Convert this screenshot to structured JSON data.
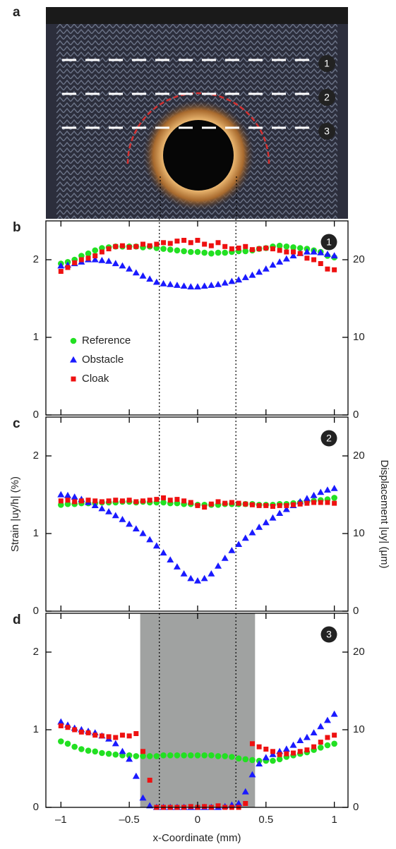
{
  "photo": {
    "label": "a",
    "markers": [
      "1",
      "2",
      "3"
    ]
  },
  "chart_data": [
    {
      "type": "scatter",
      "panel_label": "b",
      "badge": "1",
      "legend": true,
      "xlim": [
        -1.11,
        1.1
      ],
      "xticks": [
        -1,
        -0.5,
        0,
        0.5,
        1
      ],
      "ylim": [
        0,
        2.5
      ],
      "yticks": [
        0,
        1,
        2
      ],
      "y2lim": [
        0,
        25
      ],
      "y2ticks": [
        0,
        10,
        20
      ],
      "vlines": [
        -0.28,
        0.28
      ],
      "x": [
        -1,
        -0.95,
        -0.9,
        -0.85,
        -0.8,
        -0.75,
        -0.7,
        -0.65,
        -0.6,
        -0.55,
        -0.5,
        -0.45,
        -0.4,
        -0.35,
        -0.3,
        -0.25,
        -0.2,
        -0.15,
        -0.1,
        -0.05,
        0,
        0.05,
        0.1,
        0.15,
        0.2,
        0.25,
        0.3,
        0.35,
        0.4,
        0.45,
        0.5,
        0.55,
        0.6,
        0.65,
        0.7,
        0.75,
        0.8,
        0.85,
        0.9,
        0.95,
        1
      ],
      "series": [
        {
          "name": "Reference",
          "color": "#22e022",
          "marker": "circle",
          "values": [
            1.95,
            1.97,
            2.0,
            2.05,
            2.08,
            2.12,
            2.15,
            2.16,
            2.17,
            2.17,
            2.17,
            2.17,
            2.16,
            2.17,
            2.15,
            2.14,
            2.13,
            2.12,
            2.11,
            2.1,
            2.1,
            2.09,
            2.08,
            2.09,
            2.09,
            2.1,
            2.11,
            2.11,
            2.12,
            2.14,
            2.15,
            2.17,
            2.18,
            2.17,
            2.16,
            2.15,
            2.14,
            2.12,
            2.1,
            2.05,
            2.03
          ]
        },
        {
          "name": "Obstacle",
          "color": "#1a1aff",
          "marker": "triangle",
          "values": [
            1.92,
            1.93,
            1.95,
            1.97,
            2.0,
            2.0,
            1.99,
            1.98,
            1.95,
            1.92,
            1.88,
            1.83,
            1.79,
            1.75,
            1.71,
            1.69,
            1.68,
            1.67,
            1.66,
            1.65,
            1.65,
            1.66,
            1.67,
            1.68,
            1.7,
            1.72,
            1.74,
            1.77,
            1.8,
            1.84,
            1.88,
            1.93,
            1.97,
            2.01,
            2.05,
            2.08,
            2.1,
            2.1,
            2.09,
            2.07,
            2.05
          ]
        },
        {
          "name": "Cloak",
          "color": "#ee1111",
          "marker": "square",
          "values": [
            1.85,
            1.9,
            1.96,
            2.0,
            2.02,
            2.05,
            2.1,
            2.14,
            2.17,
            2.18,
            2.16,
            2.17,
            2.2,
            2.18,
            2.2,
            2.22,
            2.21,
            2.24,
            2.25,
            2.22,
            2.25,
            2.2,
            2.18,
            2.22,
            2.17,
            2.14,
            2.15,
            2.17,
            2.13,
            2.14,
            2.15,
            2.14,
            2.12,
            2.1,
            2.1,
            2.08,
            2.02,
            2.0,
            1.95,
            1.88,
            1.87
          ]
        }
      ]
    },
    {
      "type": "scatter",
      "panel_label": "c",
      "badge": "2",
      "ylabel": "Strain |uy/h| (%)",
      "y2label": "Displacement |uy| (μm)",
      "xlim": [
        -1.11,
        1.1
      ],
      "xticks": [
        -1,
        -0.5,
        0,
        0.5,
        1
      ],
      "ylim": [
        0,
        2.5
      ],
      "yticks": [
        0,
        1,
        2
      ],
      "y2lim": [
        0,
        25
      ],
      "y2ticks": [
        0,
        10,
        20
      ],
      "vlines": [
        -0.28,
        0.28
      ],
      "x": [
        -1,
        -0.95,
        -0.9,
        -0.85,
        -0.8,
        -0.75,
        -0.7,
        -0.65,
        -0.6,
        -0.55,
        -0.5,
        -0.45,
        -0.4,
        -0.35,
        -0.3,
        -0.25,
        -0.2,
        -0.15,
        -0.1,
        -0.05,
        0,
        0.05,
        0.1,
        0.15,
        0.2,
        0.25,
        0.3,
        0.35,
        0.4,
        0.45,
        0.5,
        0.55,
        0.6,
        0.65,
        0.7,
        0.75,
        0.8,
        0.85,
        0.9,
        0.95,
        1
      ],
      "series": [
        {
          "name": "Reference",
          "color": "#22e022",
          "marker": "circle",
          "values": [
            1.37,
            1.38,
            1.38,
            1.39,
            1.39,
            1.39,
            1.4,
            1.4,
            1.4,
            1.41,
            1.41,
            1.4,
            1.41,
            1.4,
            1.4,
            1.4,
            1.39,
            1.39,
            1.38,
            1.38,
            1.37,
            1.37,
            1.37,
            1.37,
            1.38,
            1.38,
            1.38,
            1.38,
            1.38,
            1.37,
            1.37,
            1.37,
            1.38,
            1.38,
            1.39,
            1.4,
            1.41,
            1.42,
            1.43,
            1.44,
            1.46
          ]
        },
        {
          "name": "Obstacle",
          "color": "#1a1aff",
          "marker": "triangle",
          "values": [
            1.5,
            1.49,
            1.47,
            1.44,
            1.4,
            1.36,
            1.32,
            1.28,
            1.23,
            1.18,
            1.12,
            1.06,
            1.0,
            0.92,
            0.84,
            0.75,
            0.66,
            0.57,
            0.48,
            0.42,
            0.39,
            0.42,
            0.48,
            0.58,
            0.68,
            0.78,
            0.86,
            0.94,
            1.01,
            1.08,
            1.14,
            1.2,
            1.26,
            1.31,
            1.36,
            1.41,
            1.45,
            1.49,
            1.53,
            1.56,
            1.58
          ]
        },
        {
          "name": "Cloak",
          "color": "#ee1111",
          "marker": "square",
          "values": [
            1.42,
            1.43,
            1.41,
            1.42,
            1.43,
            1.42,
            1.41,
            1.42,
            1.43,
            1.42,
            1.43,
            1.41,
            1.42,
            1.43,
            1.44,
            1.46,
            1.43,
            1.44,
            1.42,
            1.4,
            1.36,
            1.34,
            1.38,
            1.41,
            1.39,
            1.4,
            1.39,
            1.38,
            1.37,
            1.36,
            1.36,
            1.35,
            1.36,
            1.36,
            1.37,
            1.38,
            1.39,
            1.4,
            1.4,
            1.4,
            1.39
          ]
        }
      ]
    },
    {
      "type": "scatter",
      "panel_label": "d",
      "badge": "3",
      "xlabel": "x-Coordinate (mm)",
      "xlim": [
        -1.11,
        1.1
      ],
      "xticks": [
        {
          "value": -1,
          "label": "–1"
        },
        {
          "value": -0.5,
          "label": "–0.5"
        },
        0,
        0.5,
        1
      ],
      "ylim": [
        0,
        2.5
      ],
      "yticks": [
        0,
        1,
        2
      ],
      "y2lim": [
        0,
        25
      ],
      "y2ticks": [
        0,
        10,
        20
      ],
      "vlines": [
        -0.28,
        0.28
      ],
      "shaded_region": [
        -0.42,
        0.42
      ],
      "shade_color": "#a0a2a1",
      "x": [
        -1,
        -0.95,
        -0.9,
        -0.85,
        -0.8,
        -0.75,
        -0.7,
        -0.65,
        -0.6,
        -0.55,
        -0.5,
        -0.45,
        -0.4,
        -0.35,
        -0.3,
        -0.25,
        -0.2,
        -0.15,
        -0.1,
        -0.05,
        0,
        0.05,
        0.1,
        0.15,
        0.2,
        0.25,
        0.3,
        0.35,
        0.4,
        0.45,
        0.5,
        0.55,
        0.6,
        0.65,
        0.7,
        0.75,
        0.8,
        0.85,
        0.9,
        0.95,
        1
      ],
      "series": [
        {
          "name": "Reference",
          "color": "#22e022",
          "marker": "circle",
          "values": [
            0.85,
            0.82,
            0.78,
            0.75,
            0.73,
            0.72,
            0.7,
            0.69,
            0.68,
            0.67,
            0.67,
            0.66,
            0.66,
            0.66,
            0.66,
            0.67,
            0.67,
            0.67,
            0.67,
            0.67,
            0.67,
            0.67,
            0.67,
            0.66,
            0.66,
            0.65,
            0.63,
            0.62,
            0.61,
            0.6,
            0.6,
            0.6,
            0.62,
            0.65,
            0.67,
            0.69,
            0.71,
            0.74,
            0.77,
            0.8,
            0.82
          ]
        },
        {
          "name": "Obstacle",
          "color": "#1a1aff",
          "marker": "triangle",
          "values": [
            1.1,
            1.06,
            1.02,
            1.0,
            0.98,
            0.96,
            0.92,
            0.88,
            0.82,
            0.72,
            0.62,
            0.4,
            0.12,
            0.02,
            0,
            0,
            0,
            0,
            0,
            0,
            0,
            0,
            0,
            0,
            0.01,
            0.03,
            0.05,
            0.2,
            0.42,
            0.56,
            0.64,
            0.68,
            0.72,
            0.75,
            0.8,
            0.86,
            0.9,
            0.96,
            1.04,
            1.12,
            1.2
          ]
        },
        {
          "name": "Cloak",
          "color": "#ee1111",
          "marker": "square",
          "values": [
            1.05,
            1.03,
            1.0,
            0.97,
            0.96,
            0.93,
            0.92,
            0.91,
            0.9,
            0.93,
            0.92,
            0.95,
            0.72,
            0.35,
            0,
            0,
            0,
            0,
            0,
            0.01,
            0,
            0.01,
            0,
            0.02,
            0,
            0,
            0,
            0.05,
            0.82,
            0.78,
            0.75,
            0.72,
            0.68,
            0.69,
            0.7,
            0.72,
            0.74,
            0.78,
            0.84,
            0.9,
            0.93
          ]
        }
      ]
    }
  ]
}
